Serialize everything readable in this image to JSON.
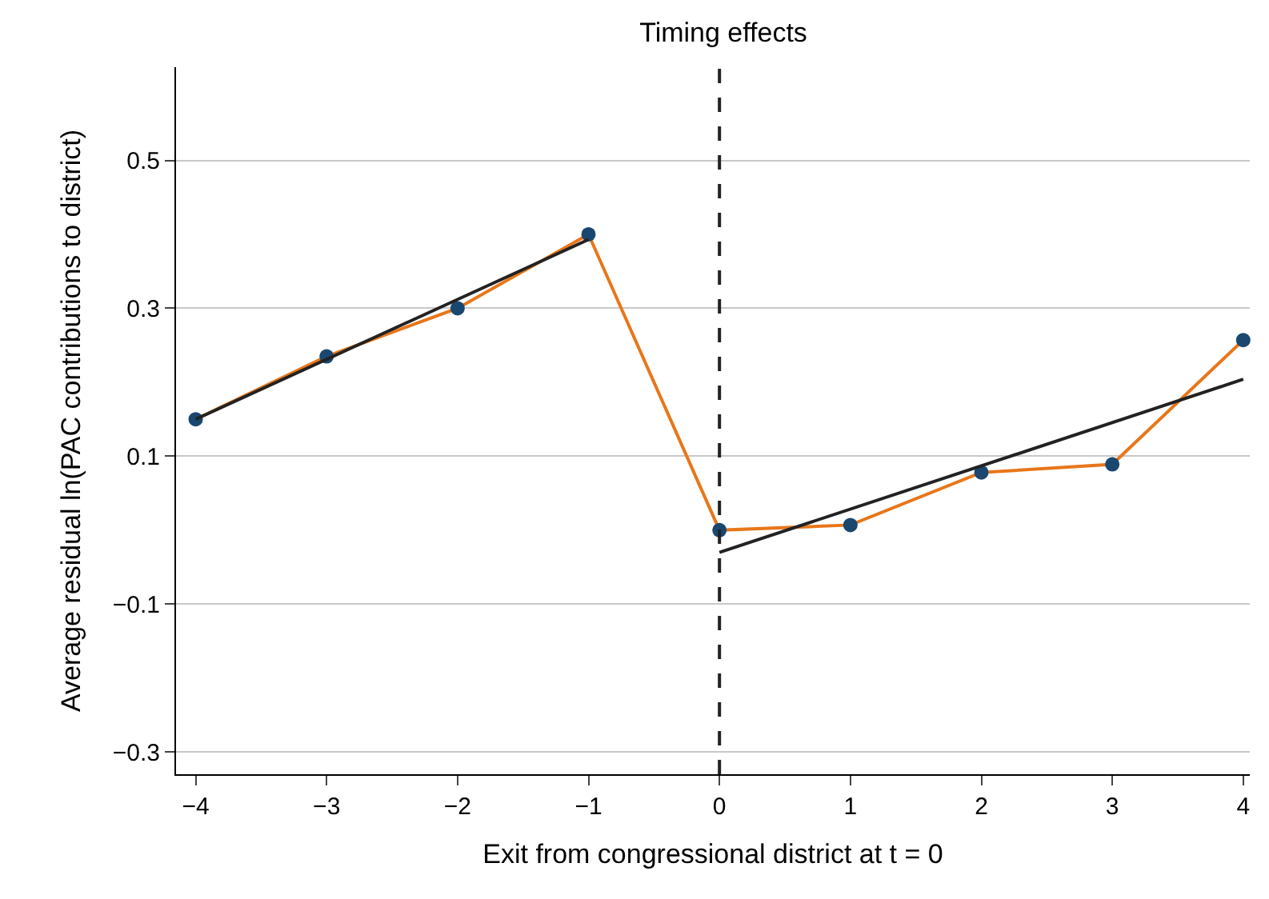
{
  "chart_data": {
    "type": "line",
    "title": "Timing effects",
    "xlabel": "Exit from congressional district at t = 0",
    "ylabel": "Average residual ln(PAC contributions to district)",
    "x": [
      -4,
      -3,
      -2,
      -1,
      0,
      1,
      2,
      3,
      4
    ],
    "series": [
      {
        "type": "line",
        "color": "#e8761a",
        "values": [
          0.15,
          0.235,
          0.3,
          0.4,
          0.0,
          0.007,
          0.078,
          0.089,
          0.257
        ],
        "marker": "none"
      },
      {
        "type": "scatter",
        "color": "#1a476f",
        "values": [
          0.15,
          0.235,
          0.3,
          0.4,
          0.0,
          0.007,
          0.078,
          0.089,
          0.257
        ],
        "marker": "circle"
      },
      {
        "type": "line",
        "color": "#222222",
        "x": [
          -4,
          -1
        ],
        "values": [
          0.15,
          0.393
        ],
        "marker": "none"
      },
      {
        "type": "line",
        "color": "#222222",
        "x": [
          0,
          4
        ],
        "values": [
          -0.03,
          0.204
        ],
        "marker": "none"
      }
    ],
    "ref_lines": [
      {
        "axis": "x",
        "value": 0,
        "color": "#222222",
        "line_style": "dashed"
      }
    ],
    "xlim": [
      -4.15,
      4.05
    ],
    "ylim": [
      -0.33,
      0.626
    ],
    "xticks": [
      {
        "value": -4,
        "label": "−4"
      },
      {
        "value": -3,
        "label": "−3"
      },
      {
        "value": -2,
        "label": "−2"
      },
      {
        "value": -1,
        "label": "−1"
      },
      0,
      1,
      2,
      3,
      4
    ],
    "yticks": [
      {
        "value": -0.3,
        "label": "−0.3"
      },
      {
        "value": -0.1,
        "label": "−0.1"
      },
      0.1,
      0.3,
      0.5
    ],
    "grid": "y"
  }
}
